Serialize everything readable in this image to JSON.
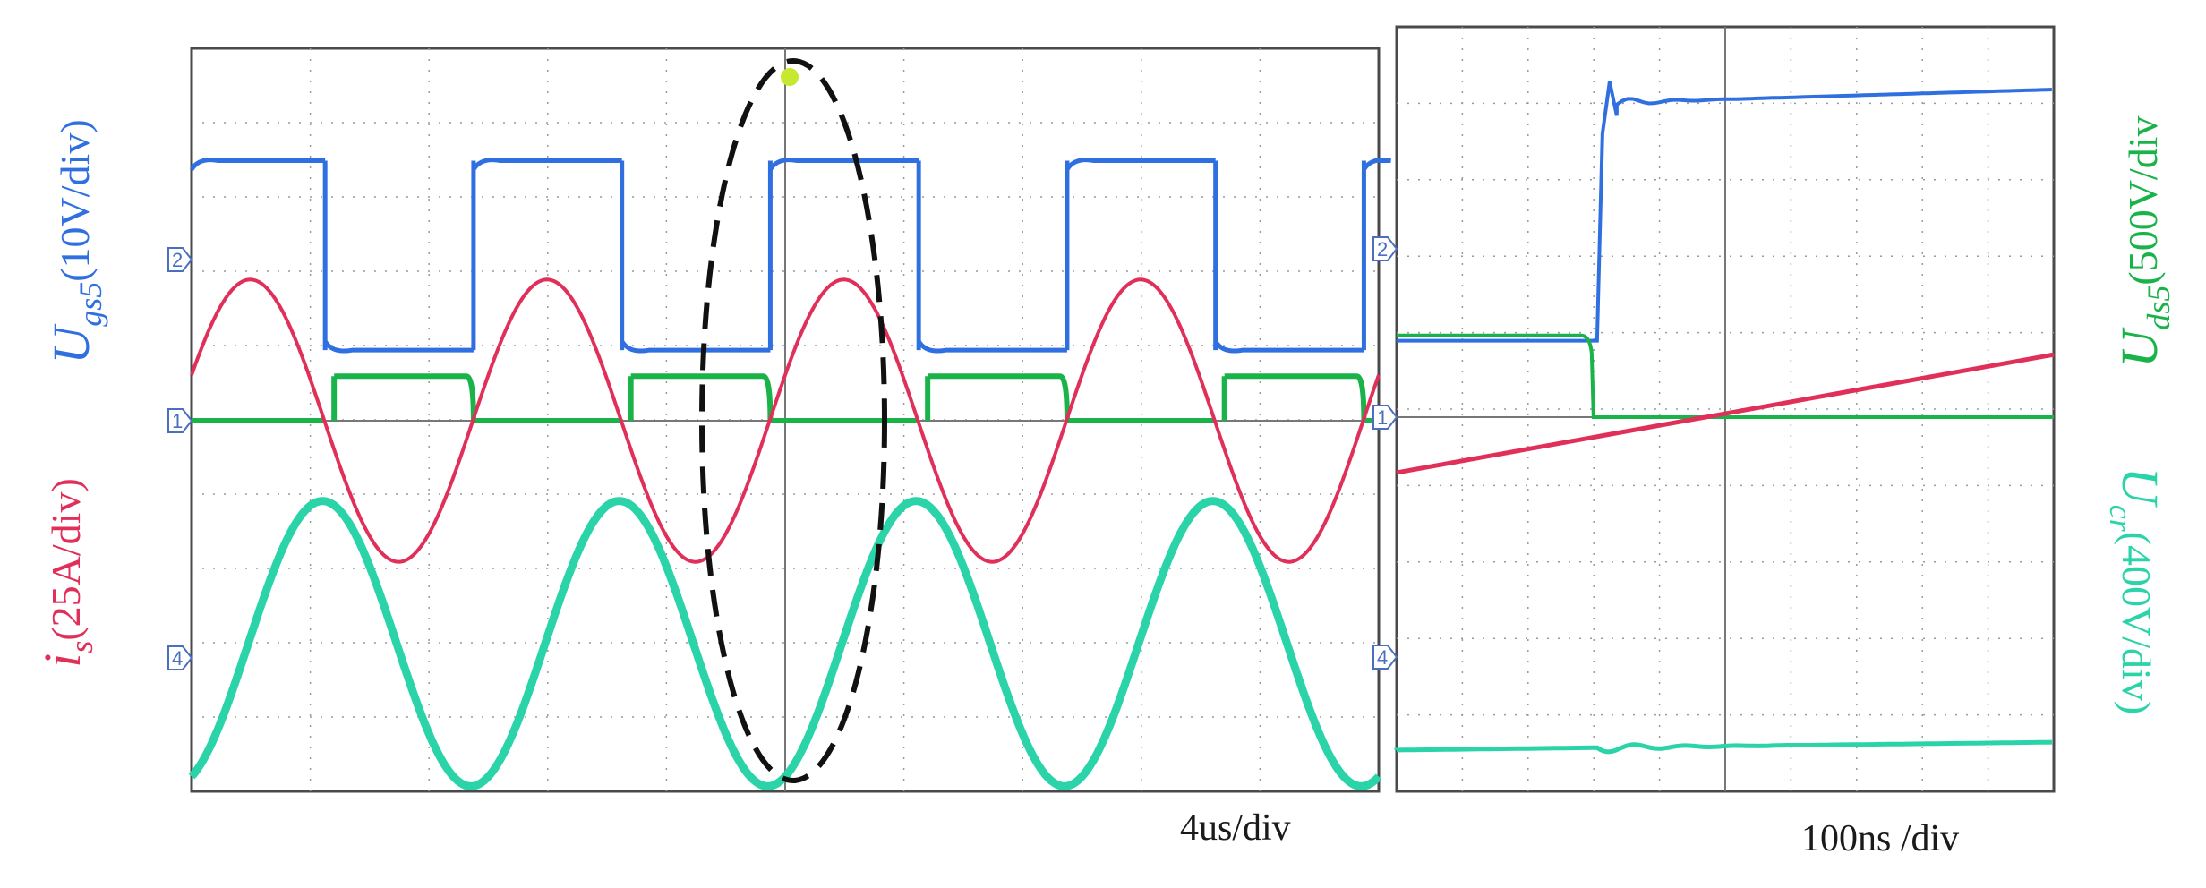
{
  "chart_data": [
    {
      "type": "line",
      "panel": "left",
      "time_scale_label": "4us/div",
      "channel_markers": [
        "2",
        "1",
        "4"
      ],
      "series": [
        {
          "name_main": "U",
          "name_sub": "gs5",
          "scale": "(10V/div)",
          "color": "#2f6fe0",
          "shape": "square",
          "period_div": 2.5,
          "levels_div": [
            3.5,
            0.95
          ],
          "transitions_div": [
            -0.5,
            0.75,
            2.0,
            3.25,
            4.5,
            5.75,
            7.0,
            8.25,
            9.5
          ]
        },
        {
          "name_main": "U",
          "name_sub": "ds5",
          "scale": "(500V/div",
          "color": "#19b34a",
          "shape": "square",
          "period_div": 2.5,
          "levels_div": [
            0.6,
            0.0
          ]
        },
        {
          "name_main": "i",
          "name_sub": "s",
          "scale": "(25A/div)",
          "color": "#e0305a",
          "shape": "sine",
          "period_div": 2.5,
          "amplitude_div": 1.0,
          "offset_div": 0.0
        },
        {
          "name_main": "U",
          "name_sub": "cr",
          "scale": "(400V/div)",
          "color": "#2ad4a8",
          "shape": "sine",
          "period_div": 2.5,
          "amplitude_div": 1.2,
          "offset_div": -3.0
        }
      ],
      "annotation": "dashed ellipse marking switching instant"
    },
    {
      "type": "line",
      "panel": "right",
      "time_scale_label": "100ns /div",
      "channel_markers": [
        "2",
        "1",
        "4"
      ],
      "series": [
        {
          "name": "gate voltage",
          "color": "#2f6fe0",
          "levels_div": [
            1.0,
            3.1
          ],
          "transition_div": 2.5
        },
        {
          "name": "drain-source voltage",
          "color": "#19b34a",
          "levels_div": [
            0.6,
            0.0
          ],
          "transition_div": 2.5
        },
        {
          "name": "current",
          "color": "#e0305a",
          "ramp_div": [
            -0.55,
            0.35
          ]
        },
        {
          "name": "resonant voltage",
          "color": "#2ad4a8",
          "level_div": -2.95
        }
      ]
    }
  ],
  "labels": {
    "left1": {
      "main": "U",
      "sub": "gs5",
      "scale": "(10V/div)",
      "color": "#2f6fe0"
    },
    "left2": {
      "main": "i",
      "sub": "s",
      "scale": "(25A/div)",
      "color": "#e0305a"
    },
    "right1": {
      "main": "U",
      "sub": "ds5",
      "scale": "(500V/div",
      "color": "#19b34a"
    },
    "right2": {
      "main": "U",
      "sub": "cr",
      "scale": "(400V/div)",
      "color": "#2ad4a8"
    },
    "timebase_left": "4us/div",
    "timebase_right": "100ns /div"
  }
}
